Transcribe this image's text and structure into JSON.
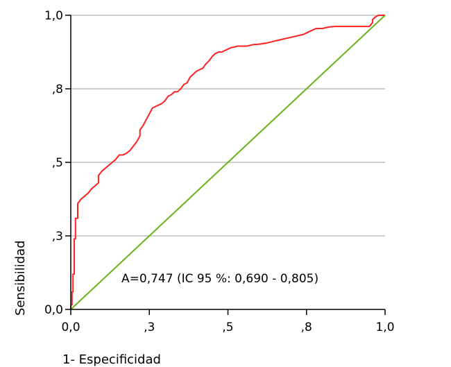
{
  "chart_data": {
    "type": "line",
    "xlabel": "1- Especificidad",
    "ylabel": "Sensibilidad",
    "xlim": [
      0,
      1
    ],
    "ylim": [
      0,
      1
    ],
    "grid": "horizontal",
    "x_ticks": [
      {
        "value": 0.0,
        "label": "0,0"
      },
      {
        "value": 0.25,
        "label": ",3"
      },
      {
        "value": 0.5,
        "label": ",5"
      },
      {
        "value": 0.75,
        "label": ",8"
      },
      {
        "value": 1.0,
        "label": "1,0"
      }
    ],
    "y_ticks": [
      {
        "value": 0.0,
        "label": "0,0"
      },
      {
        "value": 0.25,
        "label": ",3"
      },
      {
        "value": 0.5,
        "label": ",5"
      },
      {
        "value": 0.75,
        "label": ",8"
      },
      {
        "value": 1.0,
        "label": "1,0"
      }
    ],
    "annotation": "A=0,747 (IC 95 %: 0,690 - 0,805)",
    "colors": {
      "roc": "#ff2020",
      "reference": "#66b21a",
      "grid": "#bfbfbf",
      "axis": "#000000"
    },
    "series": [
      {
        "role": "roc",
        "x": [
          0.0,
          0.0,
          0.004,
          0.004,
          0.007,
          0.007,
          0.011,
          0.011,
          0.015,
          0.015,
          0.022,
          0.022,
          0.033,
          0.044,
          0.055,
          0.066,
          0.077,
          0.088,
          0.088,
          0.099,
          0.11,
          0.121,
          0.132,
          0.143,
          0.154,
          0.165,
          0.176,
          0.188,
          0.199,
          0.21,
          0.22,
          0.22,
          0.23,
          0.24,
          0.25,
          0.26,
          0.27,
          0.28,
          0.29,
          0.3,
          0.31,
          0.32,
          0.33,
          0.34,
          0.35,
          0.36,
          0.37,
          0.38,
          0.39,
          0.4,
          0.41,
          0.42,
          0.43,
          0.44,
          0.45,
          0.46,
          0.47,
          0.48,
          0.49,
          0.5,
          0.51,
          0.52,
          0.53,
          0.54,
          0.56,
          0.58,
          0.6,
          0.62,
          0.64,
          0.66,
          0.68,
          0.7,
          0.72,
          0.74,
          0.76,
          0.77,
          0.78,
          0.8,
          0.82,
          0.84,
          0.86,
          0.88,
          0.9,
          0.92,
          0.94,
          0.95,
          0.96,
          0.96,
          0.97,
          0.98,
          1.0
        ],
        "y": [
          0.0,
          0.015,
          0.015,
          0.06,
          0.06,
          0.12,
          0.12,
          0.24,
          0.24,
          0.31,
          0.31,
          0.36,
          0.375,
          0.385,
          0.395,
          0.41,
          0.42,
          0.43,
          0.455,
          0.47,
          0.48,
          0.49,
          0.5,
          0.51,
          0.525,
          0.525,
          0.53,
          0.54,
          0.555,
          0.57,
          0.59,
          0.61,
          0.625,
          0.645,
          0.665,
          0.685,
          0.69,
          0.695,
          0.7,
          0.71,
          0.725,
          0.73,
          0.74,
          0.74,
          0.75,
          0.765,
          0.77,
          0.79,
          0.8,
          0.81,
          0.815,
          0.82,
          0.835,
          0.845,
          0.86,
          0.87,
          0.875,
          0.875,
          0.88,
          0.885,
          0.89,
          0.892,
          0.895,
          0.895,
          0.895,
          0.9,
          0.902,
          0.905,
          0.91,
          0.915,
          0.92,
          0.925,
          0.93,
          0.935,
          0.945,
          0.95,
          0.955,
          0.955,
          0.96,
          0.962,
          0.962,
          0.962,
          0.962,
          0.962,
          0.962,
          0.962,
          0.975,
          0.985,
          0.995,
          1.0,
          1.0
        ]
      },
      {
        "role": "reference",
        "x": [
          0,
          1
        ],
        "y": [
          0,
          1
        ]
      }
    ]
  }
}
